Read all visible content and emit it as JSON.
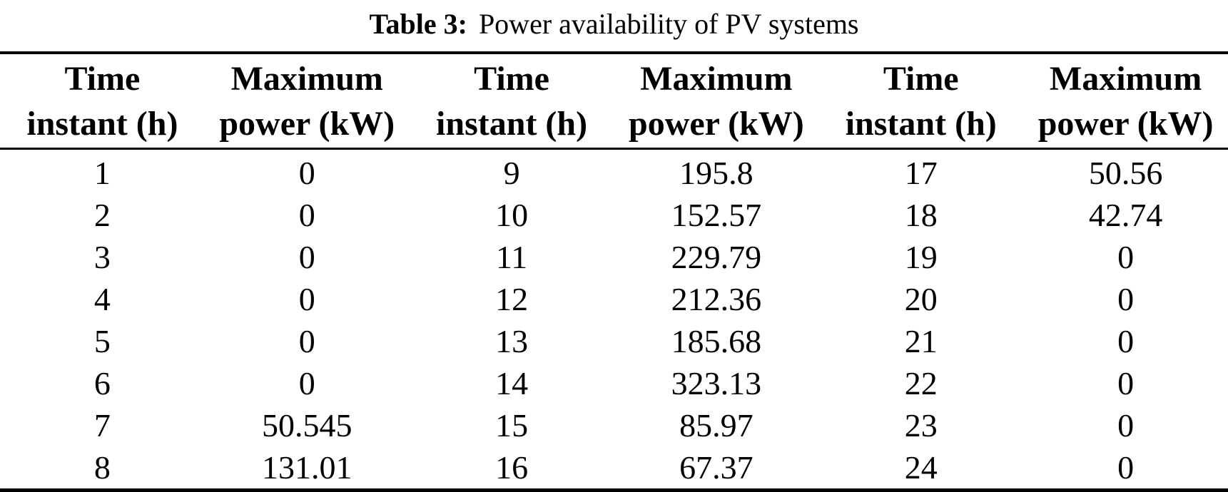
{
  "caption": {
    "label": "Table 3:",
    "text": "Power availability of PV systems"
  },
  "table": {
    "headers": [
      {
        "line1": "Time",
        "line2": "instant (h)"
      },
      {
        "line1": "Maximum",
        "line2": "power (kW)"
      },
      {
        "line1": "Time",
        "line2": "instant (h)"
      },
      {
        "line1": "Maximum",
        "line2": "power (kW)"
      },
      {
        "line1": "Time",
        "line2": "instant (h)"
      },
      {
        "line1": "Maximum",
        "line2": "power (kW)"
      }
    ],
    "rows": [
      [
        "1",
        "0",
        "9",
        "195.8",
        "17",
        "50.56"
      ],
      [
        "2",
        "0",
        "10",
        "152.57",
        "18",
        "42.74"
      ],
      [
        "3",
        "0",
        "11",
        "229.79",
        "19",
        "0"
      ],
      [
        "4",
        "0",
        "12",
        "212.36",
        "20",
        "0"
      ],
      [
        "5",
        "0",
        "13",
        "185.68",
        "21",
        "0"
      ],
      [
        "6",
        "0",
        "14",
        "323.13",
        "22",
        "0"
      ],
      [
        "7",
        "50.545",
        "15",
        "85.97",
        "23",
        "0"
      ],
      [
        "8",
        "131.01",
        "16",
        "67.37",
        "24",
        "0"
      ]
    ]
  },
  "chart_data": {
    "type": "table",
    "title": "Table 3: Power availability of PV systems",
    "xlabel": "Time instant (h)",
    "ylabel": "Maximum power (kW)",
    "x": [
      1,
      2,
      3,
      4,
      5,
      6,
      7,
      8,
      9,
      10,
      11,
      12,
      13,
      14,
      15,
      16,
      17,
      18,
      19,
      20,
      21,
      22,
      23,
      24
    ],
    "values": [
      0,
      0,
      0,
      0,
      0,
      0,
      50.545,
      131.01,
      195.8,
      152.57,
      229.79,
      212.36,
      185.68,
      323.13,
      85.97,
      67.37,
      50.56,
      42.74,
      0,
      0,
      0,
      0,
      0,
      0
    ]
  },
  "colors": {
    "text": "#000000",
    "background": "#ffffff",
    "rule": "#000000"
  }
}
